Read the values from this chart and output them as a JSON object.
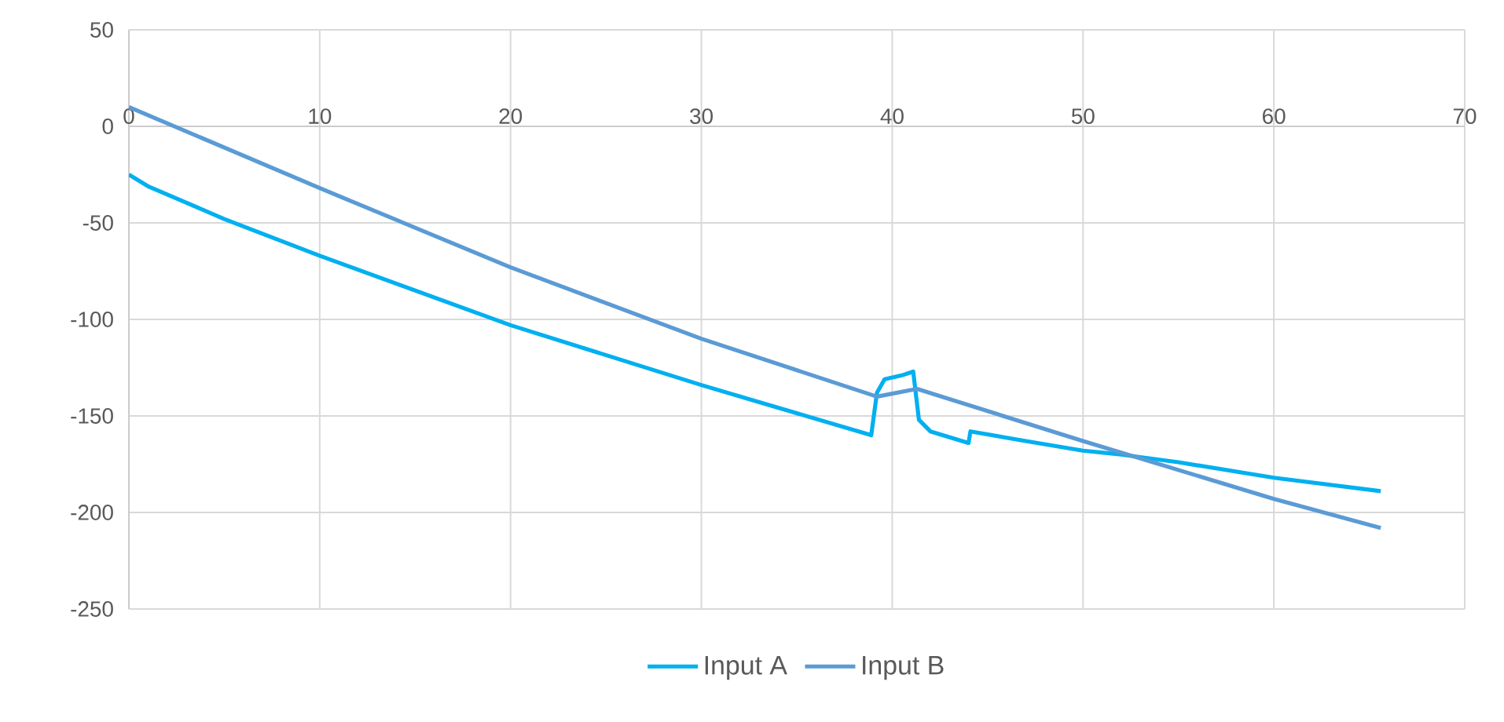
{
  "chart_data": {
    "type": "line",
    "x": [
      0,
      1,
      5,
      10,
      20,
      30,
      38.9,
      39.2,
      39.6,
      40.5,
      41.1,
      41.4,
      42,
      44,
      44.1,
      47,
      50,
      52,
      55,
      60,
      65.6
    ],
    "series": [
      {
        "name": "Input A",
        "color": "#00b0f0",
        "values": [
          -25,
          -31,
          -48,
          -67,
          -103,
          -134,
          -160,
          -138,
          -131,
          -129,
          -127,
          -152,
          -158,
          -164,
          -158,
          -163,
          -168,
          -170,
          -174,
          -182,
          -189
        ]
      },
      {
        "name": "Input B",
        "color": "#5b9bd5",
        "x": [
          0,
          10,
          20,
          30,
          39.2,
          41.3,
          50,
          60,
          65.6
        ],
        "values": [
          10,
          -32,
          -73,
          -110,
          -140,
          -136,
          -163,
          -193,
          -208
        ]
      }
    ],
    "xlim": [
      0,
      70
    ],
    "xticks": [
      0,
      10,
      20,
      30,
      40,
      50,
      60,
      70
    ],
    "ylim": [
      -250,
      50
    ],
    "yticks": [
      -250,
      -200,
      -150,
      -100,
      -50,
      0,
      50
    ],
    "grid": true,
    "legend": "bottom",
    "marker": "none",
    "line_style": "solid"
  }
}
